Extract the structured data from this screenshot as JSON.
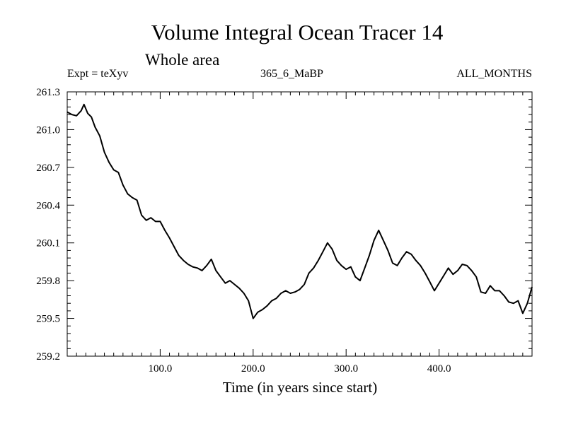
{
  "chart_data": {
    "type": "line",
    "title": "Volume Integral Ocean Tracer 14",
    "subtitle": "Whole area",
    "header_left": "Expt = teXyv",
    "header_center": "365_6_MaBP",
    "header_right": "ALL_MONTHS",
    "xlabel": "Time (in years since start)",
    "ylabel": "",
    "xlim": [
      0,
      500
    ],
    "ylim": [
      259.2,
      261.3
    ],
    "x_ticks": [
      100,
      200,
      300,
      400
    ],
    "x_tick_labels": [
      "100.0",
      "200.0",
      "300.0",
      "400.0"
    ],
    "y_ticks": [
      259.2,
      259.5,
      259.8,
      260.1,
      260.4,
      260.7,
      261.0,
      261.3
    ],
    "y_tick_labels": [
      "259.2",
      "259.5",
      "259.8",
      "260.1",
      "260.4",
      "260.7",
      "261.0",
      "261.3"
    ],
    "grid": false,
    "series": [
      {
        "x": [
          0,
          5,
          10,
          15,
          18,
          22,
          26,
          30,
          35,
          40,
          45,
          50,
          55,
          60,
          65,
          70,
          75,
          80,
          85,
          90,
          95,
          100,
          105,
          110,
          115,
          120,
          125,
          130,
          135,
          140,
          145,
          150,
          155,
          160,
          165,
          170,
          175,
          180,
          185,
          190,
          195,
          200,
          205,
          210,
          215,
          220,
          225,
          230,
          235,
          240,
          245,
          250,
          255,
          260,
          265,
          270,
          275,
          280,
          285,
          290,
          295,
          300,
          305,
          310,
          315,
          320,
          325,
          330,
          335,
          340,
          345,
          350,
          355,
          360,
          365,
          370,
          375,
          380,
          385,
          390,
          395,
          400,
          405,
          410,
          415,
          420,
          425,
          430,
          435,
          440,
          445,
          450,
          455,
          460,
          465,
          470,
          475,
          480,
          485,
          490,
          495,
          500
        ],
        "values": [
          261.14,
          261.12,
          261.11,
          261.15,
          261.2,
          261.13,
          261.1,
          261.02,
          260.95,
          260.82,
          260.74,
          260.68,
          260.66,
          260.56,
          260.49,
          260.46,
          260.44,
          260.32,
          260.28,
          260.3,
          260.27,
          260.27,
          260.2,
          260.14,
          260.07,
          260.0,
          259.96,
          259.93,
          259.91,
          259.9,
          259.88,
          259.92,
          259.97,
          259.88,
          259.83,
          259.78,
          259.8,
          259.77,
          259.74,
          259.7,
          259.64,
          259.5,
          259.55,
          259.57,
          259.6,
          259.64,
          259.66,
          259.7,
          259.72,
          259.7,
          259.71,
          259.73,
          259.77,
          259.86,
          259.9,
          259.96,
          260.03,
          260.1,
          260.05,
          259.96,
          259.92,
          259.89,
          259.91,
          259.83,
          259.8,
          259.9,
          260.0,
          260.12,
          260.2,
          260.12,
          260.04,
          259.94,
          259.92,
          259.98,
          260.03,
          260.01,
          259.96,
          259.92,
          259.86,
          259.79,
          259.72,
          259.78,
          259.84,
          259.9,
          259.85,
          259.88,
          259.93,
          259.92,
          259.88,
          259.83,
          259.71,
          259.7,
          259.76,
          259.72,
          259.72,
          259.68,
          259.63,
          259.62,
          259.64,
          259.54,
          259.62,
          259.75
        ]
      }
    ]
  }
}
